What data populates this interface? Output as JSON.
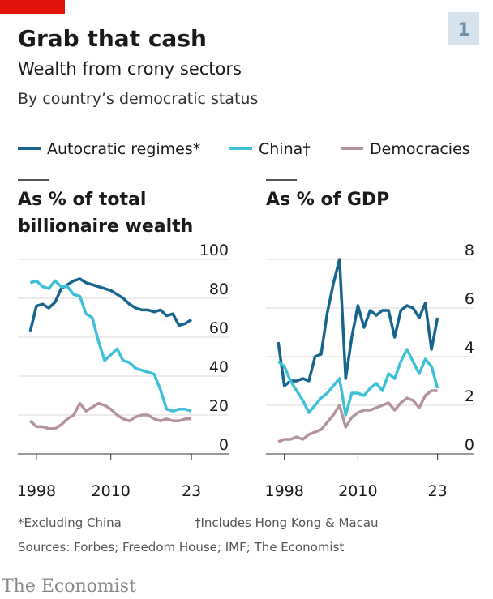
{
  "title": "Grab that cash",
  "subtitle": "Wealth from crony sectors",
  "subtitle2": "By country’s democratic status",
  "badge": "1",
  "footnotes": [
    "*Excluding China",
    "†Includes Hong Kong & Macau"
  ],
  "source": "Sources: Forbes; Freedom House; IMF; The Economist",
  "brand": "The Economist",
  "chart_data": [
    {
      "type": "line",
      "title": [
        "As % of total",
        "billionaire wealth"
      ],
      "x": [
        1997,
        1998,
        1999,
        2000,
        2001,
        2002,
        2003,
        2004,
        2005,
        2006,
        2007,
        2008,
        2009,
        2010,
        2011,
        2012,
        2013,
        2014,
        2015,
        2016,
        2017,
        2018,
        2019,
        2020,
        2021,
        2022,
        2023
      ],
      "xlim": [
        1995,
        2029
      ],
      "xticks": [
        1998,
        2010,
        {
          "value": 2023,
          "label": "23"
        }
      ],
      "ylim": [
        0,
        100
      ],
      "yticks": [
        0,
        20,
        40,
        60,
        80,
        100
      ],
      "grid": true,
      "series": [
        {
          "name": "Autocratic regimes*",
          "color": "#17648d",
          "values": [
            63,
            76,
            77,
            75,
            78,
            85,
            87,
            89,
            90,
            88,
            87,
            86,
            85,
            84,
            82,
            80,
            77,
            75,
            74,
            74,
            73,
            74,
            71,
            72,
            66,
            67,
            69
          ]
        },
        {
          "name": "China†",
          "color": "#3ec1d8",
          "values": [
            88,
            89,
            86,
            85,
            89,
            86,
            86,
            82,
            81,
            72,
            70,
            58,
            48,
            51,
            54,
            48,
            47,
            44,
            43,
            42,
            41,
            33,
            23,
            22,
            23,
            23,
            22
          ]
        },
        {
          "name": "Democracies",
          "color": "#b4949c",
          "values": [
            17,
            14,
            14,
            13,
            13,
            15,
            18,
            20,
            26,
            22,
            24,
            26,
            25,
            23,
            20,
            18,
            17,
            19,
            20,
            20,
            18,
            17,
            18,
            17,
            17,
            18,
            18
          ]
        }
      ]
    },
    {
      "type": "line",
      "title": [
        "As % of GDP"
      ],
      "x": [
        1997,
        1998,
        1999,
        2000,
        2001,
        2002,
        2003,
        2004,
        2005,
        2006,
        2007,
        2008,
        2009,
        2010,
        2011,
        2012,
        2013,
        2014,
        2015,
        2016,
        2017,
        2018,
        2019,
        2020,
        2021,
        2022,
        2023
      ],
      "xlim": [
        1995,
        2029
      ],
      "xticks": [
        1998,
        2010,
        {
          "value": 2023,
          "label": "23"
        }
      ],
      "ylim": [
        0,
        8
      ],
      "yticks": [
        0,
        2,
        4,
        6,
        8
      ],
      "grid": true,
      "series": [
        {
          "color": "#17648d",
          "values": [
            4.6,
            2.8,
            3.0,
            3.0,
            3.1,
            3.0,
            4.0,
            4.1,
            5.8,
            7.0,
            8.0,
            3.1,
            4.8,
            6.1,
            5.2,
            5.9,
            5.7,
            5.9,
            5.9,
            4.8,
            5.9,
            6.1,
            6.0,
            5.6,
            6.2,
            4.3,
            5.6
          ]
        },
        {
          "color": "#3ec1d8",
          "values": [
            3.8,
            3.6,
            3.0,
            2.6,
            2.2,
            1.7,
            2.0,
            2.3,
            2.5,
            2.8,
            3.1,
            1.6,
            2.5,
            2.5,
            2.4,
            2.7,
            2.9,
            2.6,
            3.3,
            3.1,
            3.8,
            4.3,
            3.8,
            3.3,
            3.9,
            3.6,
            2.7
          ]
        },
        {
          "color": "#b4949c",
          "values": [
            0.5,
            0.6,
            0.6,
            0.7,
            0.6,
            0.8,
            0.9,
            1.0,
            1.3,
            1.6,
            2.0,
            1.1,
            1.5,
            1.7,
            1.8,
            1.8,
            1.9,
            2.0,
            2.1,
            1.8,
            2.1,
            2.3,
            2.2,
            1.9,
            2.4,
            2.6,
            2.6
          ]
        }
      ]
    }
  ]
}
